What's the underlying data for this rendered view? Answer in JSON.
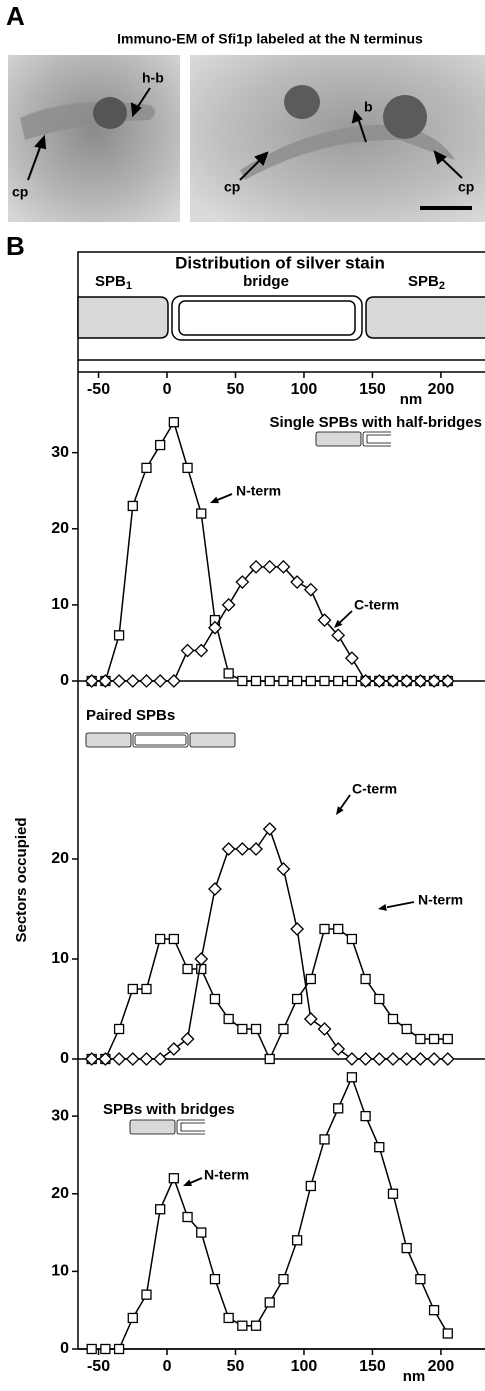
{
  "panel_a": {
    "letter": "A",
    "title": "Immuno-EM of Sfi1p labeled at the N terminus",
    "labels": [
      "h-b",
      "cp",
      "b",
      "cp",
      "cp"
    ]
  },
  "panel_b": {
    "letter": "B",
    "ylabel": "Sectors occupied",
    "schematic": {
      "title": "Distribution of silver stain",
      "labels": [
        {
          "text": "SPB",
          "sub": "1"
        },
        {
          "text": "bridge"
        },
        {
          "text": "SPB",
          "sub": "2"
        }
      ]
    }
  },
  "chart_data": [
    {
      "type": "line",
      "title": "Single SPBs with half-bridges",
      "xlabel": "nm",
      "x": [
        -55,
        -45,
        -35,
        -25,
        -15,
        -5,
        5,
        15,
        25,
        35,
        45,
        55,
        65,
        75,
        85,
        95,
        105,
        115,
        125,
        135,
        145,
        155,
        165,
        175,
        185,
        195,
        205
      ],
      "xlim": [
        -65,
        230
      ],
      "xticks": [
        -50,
        0,
        50,
        100,
        150,
        200
      ],
      "ylim": [
        0,
        36
      ],
      "yticks": [
        0,
        10,
        20,
        30
      ],
      "series": [
        {
          "name": "N-term",
          "color": "#000000",
          "marker": "square",
          "values": [
            0,
            0,
            6,
            23,
            28,
            31,
            34,
            28,
            22,
            8,
            1,
            0,
            0,
            0,
            0,
            0,
            0,
            0,
            0,
            0,
            0,
            0,
            0,
            0,
            0,
            0,
            0
          ]
        },
        {
          "name": "C-term",
          "color": "#000000",
          "marker": "diamond",
          "values": [
            0,
            0,
            0,
            0,
            0,
            0,
            0,
            4,
            4,
            7,
            10,
            13,
            15,
            15,
            15,
            13,
            12,
            8,
            6,
            3,
            0,
            0,
            0,
            0,
            0,
            0,
            0
          ]
        }
      ]
    },
    {
      "type": "line",
      "title": "Paired SPBs",
      "x": [
        -55,
        -45,
        -35,
        -25,
        -15,
        -5,
        5,
        15,
        25,
        35,
        45,
        55,
        65,
        75,
        85,
        95,
        105,
        115,
        125,
        135,
        145,
        155,
        165,
        175,
        185,
        195,
        205
      ],
      "xlim": [
        -65,
        230
      ],
      "ylim": [
        0,
        36
      ],
      "yticks": [
        0,
        10,
        20
      ],
      "series": [
        {
          "name": "N-term",
          "color": "#000000",
          "marker": "square",
          "values": [
            0,
            0,
            3,
            7,
            7,
            12,
            12,
            9,
            9,
            6,
            4,
            3,
            3,
            0,
            3,
            6,
            8,
            13,
            13,
            12,
            8,
            6,
            4,
            3,
            2,
            2,
            2
          ]
        },
        {
          "name": "C-term",
          "color": "#000000",
          "marker": "diamond",
          "values": [
            0,
            0,
            0,
            0,
            0,
            0,
            1,
            2,
            10,
            17,
            21,
            21,
            21,
            23,
            19,
            13,
            4,
            3,
            1,
            0,
            0,
            0,
            0,
            0,
            0,
            0,
            0
          ]
        }
      ]
    },
    {
      "type": "line",
      "title": "SPBs with bridges",
      "xlabel": "nm",
      "x": [
        -55,
        -45,
        -35,
        -25,
        -15,
        -5,
        5,
        15,
        25,
        35,
        45,
        55,
        65,
        75,
        85,
        95,
        105,
        115,
        125,
        135,
        145,
        155,
        165,
        175,
        185,
        195,
        205
      ],
      "xlim": [
        -65,
        230
      ],
      "xticks": [
        -50,
        0,
        50,
        100,
        150,
        200
      ],
      "ylim": [
        0,
        38
      ],
      "yticks": [
        0,
        10,
        20,
        30
      ],
      "series": [
        {
          "name": "N-term",
          "color": "#000000",
          "marker": "square",
          "values": [
            0,
            0,
            0,
            4,
            7,
            18,
            22,
            17,
            15,
            9,
            4,
            3,
            3,
            6,
            9,
            14,
            21,
            27,
            31,
            35,
            30,
            26,
            20,
            13,
            9,
            5,
            2
          ]
        }
      ]
    }
  ]
}
